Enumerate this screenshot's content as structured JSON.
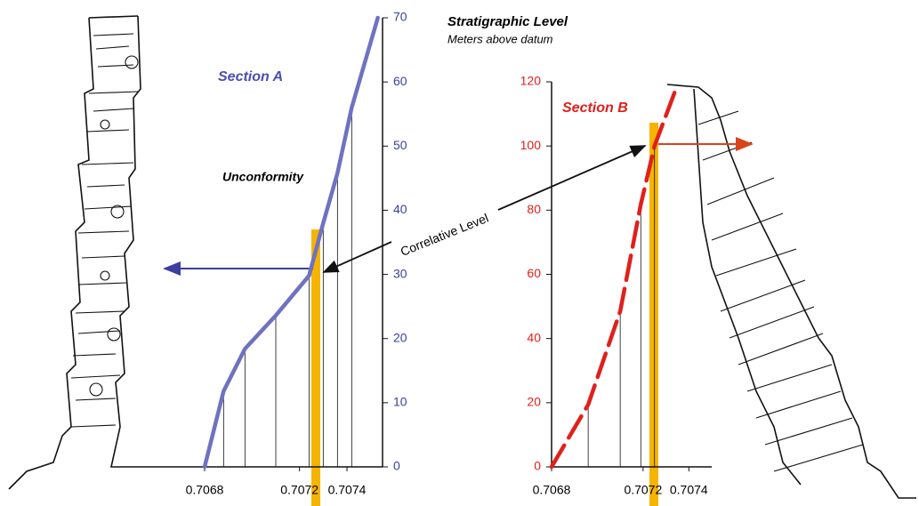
{
  "header": {
    "title": "Stratigraphic Level",
    "subtitle": "Meters above datum"
  },
  "annotations": [
    "Unconformity",
    "Correlative Level"
  ],
  "chart_data": [
    {
      "type": "line",
      "title": "Section A",
      "title_color": "#4a4fb0",
      "axis_color": "#3a3fa0",
      "y_axis_side": "right",
      "xlim": [
        0.7065,
        0.70755
      ],
      "xticks": [
        0.7068,
        0.7072,
        0.7074
      ],
      "ylim": [
        0,
        70
      ],
      "yticks": [
        0,
        10,
        20,
        30,
        40,
        50,
        60,
        70
      ],
      "series": [
        {
          "color": "#6f72c0",
          "dashed": false,
          "x": [
            0.7068,
            0.70688,
            0.70697,
            0.7071,
            0.70724,
            0.7073,
            0.70736,
            0.70742,
            0.70753
          ],
          "values": [
            0,
            11.8,
            18.4,
            23.6,
            29.8,
            38,
            45.8,
            56,
            70
          ]
        }
      ]
    },
    {
      "type": "line",
      "title": "Section B",
      "title_color": "#e0201c",
      "axis_color": "#e0201c",
      "y_axis_side": "left",
      "xlim": [
        0.7068,
        0.7075
      ],
      "xticks": [
        0.7068,
        0.7072,
        0.7074
      ],
      "ylim": [
        0,
        120
      ],
      "yticks": [
        0,
        20,
        40,
        60,
        80,
        100,
        120
      ],
      "series": [
        {
          "color": "#e0201c",
          "dashed": true,
          "x": [
            0.7068,
            0.70696,
            0.7071,
            0.70719,
            0.70725,
            0.70735
          ],
          "values": [
            0,
            19.4,
            48.5,
            81.8,
            100,
            119
          ]
        }
      ]
    }
  ]
}
